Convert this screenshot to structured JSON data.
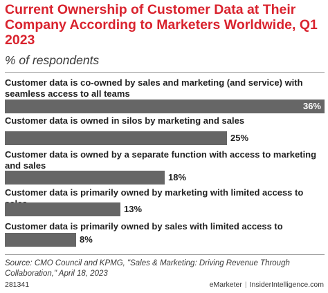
{
  "title": "Current Ownership of Customer Data at Their Company According to Marketers Worldwide, Q1 2023",
  "subtitle": "% of respondents",
  "source": "Source: CMO Council and KPMG, \"Sales & Marketing: Driving Revenue Through Collaboration,\" April 18, 2023",
  "chart_id": "281341",
  "brand": {
    "left": "eMarketer",
    "separator": "|",
    "right": "InsiderIntelligence.com"
  },
  "colors": {
    "title": "#d9232e",
    "bar": "#666666"
  },
  "chart_data": {
    "type": "bar",
    "orientation": "horizontal",
    "title": "Current Ownership of Customer Data at Their Company According to Marketers Worldwide, Q1 2023",
    "subtitle": "% of respondents",
    "categories": [
      "Customer data is co-owned by sales and marketing (and service) with seamless access to all teams",
      "Customer data is owned in silos by marketing and sales",
      "Customer data is owned by a separate function with access to marketing and sales",
      "Customer data is primarily owned by marketing with limited access to sales",
      "Customer data is primarily owned by sales with limited access to marketing"
    ],
    "values": [
      36,
      25,
      18,
      13,
      8
    ],
    "value_labels": [
      "36%",
      "25%",
      "18%",
      "13%",
      "8%"
    ],
    "xlim": [
      0,
      36
    ],
    "grid": false,
    "legend": "none"
  }
}
